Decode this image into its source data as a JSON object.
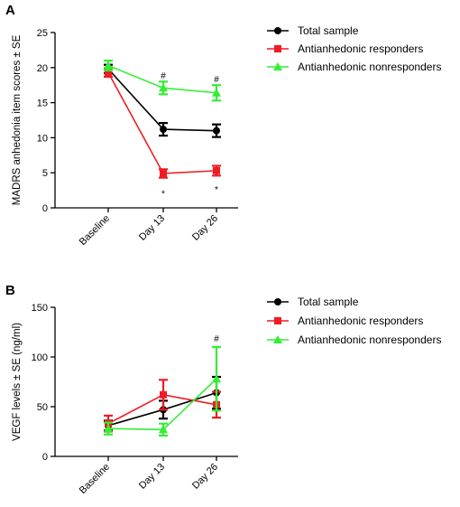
{
  "chart_data": [
    {
      "panel": "A",
      "type": "line",
      "ylabel": "MADRS anhedonia item  scores  ±  SE",
      "xlabel": "",
      "categories": [
        "Baseline",
        "Day 13",
        "Day 26"
      ],
      "ylim": [
        0,
        25
      ],
      "yticks": [
        0,
        5,
        10,
        15,
        20,
        25
      ],
      "legend_position": "top-right",
      "series": [
        {
          "name": "Total sample",
          "color": "#000000",
          "marker": "circle",
          "values": [
            19.8,
            11.2,
            11.0
          ],
          "errors": [
            0.6,
            0.9,
            0.9
          ]
        },
        {
          "name": "Antianhedonic responders",
          "color": "#ee1c24",
          "marker": "square",
          "values": [
            19.3,
            4.9,
            5.3
          ],
          "errors": [
            0.6,
            0.6,
            0.7
          ]
        },
        {
          "name": "Antianhedonic nonresponders",
          "color": "#33ee33",
          "marker": "triangle",
          "values": [
            20.3,
            17.1,
            16.4
          ],
          "errors": [
            0.7,
            0.9,
            1.1
          ]
        }
      ],
      "annotations": [
        {
          "text": "#",
          "category": "Day 13",
          "y": 18.8
        },
        {
          "text": "#",
          "category": "Day 26",
          "y": 18.3
        },
        {
          "text": "*",
          "category": "Day 13",
          "y": 2.0
        },
        {
          "text": "*",
          "category": "Day 26",
          "y": 2.6
        }
      ]
    },
    {
      "panel": "B",
      "type": "line",
      "ylabel": "VEGF  levels ±  SE (ng/ml)",
      "xlabel": "",
      "categories": [
        "Baseline",
        "Day 13",
        "Day 26"
      ],
      "ylim": [
        0,
        150
      ],
      "yticks": [
        0,
        50,
        100,
        150
      ],
      "legend_position": "top-right",
      "series": [
        {
          "name": "Total sample",
          "color": "#000000",
          "marker": "circle",
          "values": [
            31,
            47,
            64
          ],
          "errors": [
            5,
            9,
            16
          ]
        },
        {
          "name": "Antianhedonic responders",
          "color": "#ee1c24",
          "marker": "square",
          "values": [
            33,
            62,
            52
          ],
          "errors": [
            8,
            15,
            13
          ]
        },
        {
          "name": "Antianhedonic nonresponders",
          "color": "#33ee33",
          "marker": "triangle",
          "values": [
            28,
            27,
            78
          ],
          "errors": [
            6,
            6,
            32
          ]
        }
      ],
      "annotations": [
        {
          "text": "#",
          "category": "Day 26",
          "y": 118
        }
      ]
    }
  ]
}
